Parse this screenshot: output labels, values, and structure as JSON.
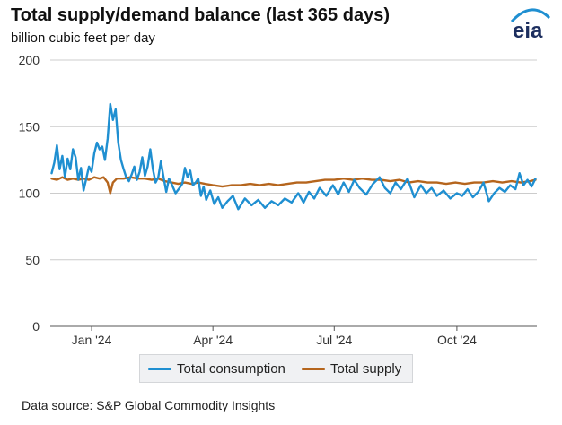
{
  "header": {
    "title": "Total supply/demand balance (last 365 days)",
    "subtitle": "billion cubic feet per day",
    "logo_text": "eia"
  },
  "footer": {
    "source": "Data source: S&P Global Commodity Insights"
  },
  "colors": {
    "consumption": "#1f8fd1",
    "supply": "#b5651d",
    "grid": "#cccccc",
    "logo_text": "#1d2f5f",
    "logo_arc": "#1f8fd1"
  },
  "chart_data": {
    "type": "line",
    "title": "Total supply/demand balance (last 365 days)",
    "ylabel": "billion cubic feet per day",
    "xlabel": "",
    "ylim": [
      0,
      200
    ],
    "xlim": [
      "2023-12-01",
      "2024-11-30"
    ],
    "yticks": [
      0,
      50,
      100,
      150,
      200
    ],
    "xticks": [
      {
        "date": "2024-01-01",
        "label": "Jan '24"
      },
      {
        "date": "2024-04-01",
        "label": "Apr '24"
      },
      {
        "date": "2024-07-01",
        "label": "Jul '24"
      },
      {
        "date": "2024-10-01",
        "label": "Oct '24"
      }
    ],
    "grid": "horizontal",
    "legend_position": "bottom",
    "series": [
      {
        "name": "Total consumption",
        "color": "#1f8fd1",
        "points": [
          [
            "2023-12-02",
            115
          ],
          [
            "2023-12-04",
            123
          ],
          [
            "2023-12-06",
            136
          ],
          [
            "2023-12-08",
            118
          ],
          [
            "2023-12-10",
            128
          ],
          [
            "2023-12-12",
            112
          ],
          [
            "2023-12-14",
            126
          ],
          [
            "2023-12-16",
            118
          ],
          [
            "2023-12-18",
            133
          ],
          [
            "2023-12-20",
            127
          ],
          [
            "2023-12-22",
            110
          ],
          [
            "2023-12-24",
            119
          ],
          [
            "2023-12-26",
            102
          ],
          [
            "2023-12-28",
            111
          ],
          [
            "2023-12-30",
            120
          ],
          [
            "2024-01-01",
            116
          ],
          [
            "2024-01-03",
            130
          ],
          [
            "2024-01-05",
            138
          ],
          [
            "2024-01-07",
            133
          ],
          [
            "2024-01-09",
            135
          ],
          [
            "2024-01-11",
            125
          ],
          [
            "2024-01-13",
            141
          ],
          [
            "2024-01-15",
            167
          ],
          [
            "2024-01-17",
            155
          ],
          [
            "2024-01-19",
            163
          ],
          [
            "2024-01-21",
            138
          ],
          [
            "2024-01-23",
            125
          ],
          [
            "2024-01-25",
            118
          ],
          [
            "2024-01-27",
            112
          ],
          [
            "2024-01-29",
            109
          ],
          [
            "2024-01-31",
            114
          ],
          [
            "2024-02-02",
            120
          ],
          [
            "2024-02-04",
            110
          ],
          [
            "2024-02-06",
            116
          ],
          [
            "2024-02-08",
            127
          ],
          [
            "2024-02-10",
            113
          ],
          [
            "2024-02-12",
            120
          ],
          [
            "2024-02-14",
            133
          ],
          [
            "2024-02-16",
            118
          ],
          [
            "2024-02-18",
            108
          ],
          [
            "2024-02-20",
            112
          ],
          [
            "2024-02-22",
            124
          ],
          [
            "2024-02-24",
            112
          ],
          [
            "2024-02-26",
            101
          ],
          [
            "2024-02-28",
            111
          ],
          [
            "2024-03-01",
            107
          ],
          [
            "2024-03-04",
            100
          ],
          [
            "2024-03-07",
            104
          ],
          [
            "2024-03-09",
            107
          ],
          [
            "2024-03-11",
            119
          ],
          [
            "2024-03-13",
            112
          ],
          [
            "2024-03-15",
            117
          ],
          [
            "2024-03-17",
            106
          ],
          [
            "2024-03-19",
            108
          ],
          [
            "2024-03-21",
            111
          ],
          [
            "2024-03-23",
            98
          ],
          [
            "2024-03-25",
            105
          ],
          [
            "2024-03-27",
            95
          ],
          [
            "2024-03-30",
            102
          ],
          [
            "2024-04-02",
            92
          ],
          [
            "2024-04-05",
            97
          ],
          [
            "2024-04-08",
            89
          ],
          [
            "2024-04-12",
            94
          ],
          [
            "2024-04-16",
            98
          ],
          [
            "2024-04-20",
            88
          ],
          [
            "2024-04-25",
            96
          ],
          [
            "2024-04-30",
            91
          ],
          [
            "2024-05-05",
            95
          ],
          [
            "2024-05-10",
            89
          ],
          [
            "2024-05-15",
            94
          ],
          [
            "2024-05-20",
            91
          ],
          [
            "2024-05-25",
            96
          ],
          [
            "2024-05-30",
            93
          ],
          [
            "2024-06-04",
            100
          ],
          [
            "2024-06-08",
            93
          ],
          [
            "2024-06-12",
            101
          ],
          [
            "2024-06-16",
            96
          ],
          [
            "2024-06-20",
            104
          ],
          [
            "2024-06-25",
            98
          ],
          [
            "2024-06-30",
            106
          ],
          [
            "2024-07-04",
            99
          ],
          [
            "2024-07-08",
            108
          ],
          [
            "2024-07-12",
            101
          ],
          [
            "2024-07-16",
            110
          ],
          [
            "2024-07-20",
            104
          ],
          [
            "2024-07-25",
            99
          ],
          [
            "2024-07-30",
            107
          ],
          [
            "2024-08-04",
            112
          ],
          [
            "2024-08-08",
            104
          ],
          [
            "2024-08-12",
            100
          ],
          [
            "2024-08-16",
            108
          ],
          [
            "2024-08-20",
            103
          ],
          [
            "2024-08-25",
            111
          ],
          [
            "2024-08-30",
            97
          ],
          [
            "2024-09-04",
            106
          ],
          [
            "2024-09-08",
            100
          ],
          [
            "2024-09-12",
            104
          ],
          [
            "2024-09-16",
            98
          ],
          [
            "2024-09-21",
            102
          ],
          [
            "2024-09-26",
            96
          ],
          [
            "2024-10-01",
            100
          ],
          [
            "2024-10-05",
            98
          ],
          [
            "2024-10-09",
            103
          ],
          [
            "2024-10-13",
            97
          ],
          [
            "2024-10-17",
            101
          ],
          [
            "2024-10-21",
            108
          ],
          [
            "2024-10-25",
            94
          ],
          [
            "2024-10-29",
            100
          ],
          [
            "2024-11-02",
            104
          ],
          [
            "2024-11-06",
            101
          ],
          [
            "2024-11-10",
            106
          ],
          [
            "2024-11-14",
            103
          ],
          [
            "2024-11-17",
            115
          ],
          [
            "2024-11-20",
            106
          ],
          [
            "2024-11-23",
            110
          ],
          [
            "2024-11-26",
            105
          ],
          [
            "2024-11-29",
            111
          ]
        ]
      },
      {
        "name": "Total supply",
        "color": "#b5651d",
        "points": [
          [
            "2023-12-02",
            111
          ],
          [
            "2023-12-06",
            110
          ],
          [
            "2023-12-10",
            112
          ],
          [
            "2023-12-14",
            110
          ],
          [
            "2023-12-18",
            111
          ],
          [
            "2023-12-22",
            110
          ],
          [
            "2023-12-26",
            111
          ],
          [
            "2023-12-30",
            110
          ],
          [
            "2024-01-03",
            112
          ],
          [
            "2024-01-07",
            111
          ],
          [
            "2024-01-10",
            112
          ],
          [
            "2024-01-13",
            108
          ],
          [
            "2024-01-15",
            100
          ],
          [
            "2024-01-17",
            108
          ],
          [
            "2024-01-20",
            111
          ],
          [
            "2024-01-25",
            111
          ],
          [
            "2024-01-30",
            112
          ],
          [
            "2024-02-05",
            111
          ],
          [
            "2024-02-10",
            111
          ],
          [
            "2024-02-15",
            110
          ],
          [
            "2024-02-20",
            111
          ],
          [
            "2024-02-25",
            109
          ],
          [
            "2024-03-01",
            108
          ],
          [
            "2024-03-06",
            107
          ],
          [
            "2024-03-11",
            108
          ],
          [
            "2024-03-16",
            107
          ],
          [
            "2024-03-21",
            108
          ],
          [
            "2024-03-26",
            107
          ],
          [
            "2024-04-01",
            106
          ],
          [
            "2024-04-08",
            105
          ],
          [
            "2024-04-15",
            106
          ],
          [
            "2024-04-22",
            106
          ],
          [
            "2024-04-29",
            107
          ],
          [
            "2024-05-06",
            106
          ],
          [
            "2024-05-13",
            107
          ],
          [
            "2024-05-20",
            106
          ],
          [
            "2024-05-27",
            107
          ],
          [
            "2024-06-03",
            108
          ],
          [
            "2024-06-10",
            108
          ],
          [
            "2024-06-17",
            109
          ],
          [
            "2024-06-24",
            110
          ],
          [
            "2024-07-01",
            110
          ],
          [
            "2024-07-08",
            111
          ],
          [
            "2024-07-15",
            110
          ],
          [
            "2024-07-22",
            111
          ],
          [
            "2024-07-29",
            110
          ],
          [
            "2024-08-05",
            110
          ],
          [
            "2024-08-12",
            109
          ],
          [
            "2024-08-19",
            110
          ],
          [
            "2024-08-26",
            108
          ],
          [
            "2024-09-02",
            109
          ],
          [
            "2024-09-09",
            108
          ],
          [
            "2024-09-16",
            108
          ],
          [
            "2024-09-23",
            107
          ],
          [
            "2024-09-30",
            108
          ],
          [
            "2024-10-07",
            107
          ],
          [
            "2024-10-14",
            108
          ],
          [
            "2024-10-21",
            108
          ],
          [
            "2024-10-28",
            109
          ],
          [
            "2024-11-04",
            108
          ],
          [
            "2024-11-11",
            109
          ],
          [
            "2024-11-18",
            108
          ],
          [
            "2024-11-25",
            109
          ],
          [
            "2024-11-29",
            110
          ]
        ]
      }
    ]
  }
}
